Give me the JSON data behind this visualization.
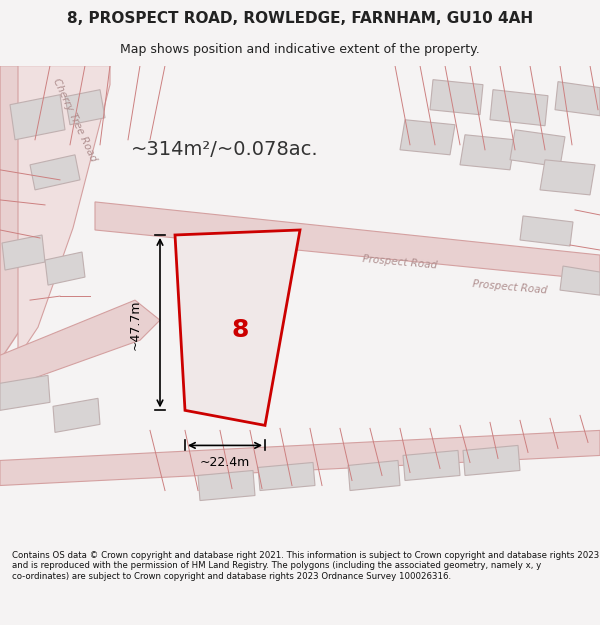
{
  "title_line1": "8, PROSPECT ROAD, ROWLEDGE, FARNHAM, GU10 4AH",
  "title_line2": "Map shows position and indicative extent of the property.",
  "area_label": "~314m²/~0.078ac.",
  "width_label": "~22.4m",
  "height_label": "~47.7m",
  "property_number": "8",
  "footer_text": "Contains OS data © Crown copyright and database right 2021. This information is subject to Crown copyright and database rights 2023 and is reproduced with the permission of HM Land Registry. The polygons (including the associated geometry, namely x, y co-ordinates) are subject to Crown copyright and database rights 2023 Ordnance Survey 100026316.",
  "bg_color": "#f0eeee",
  "map_bg": "#f5f3f3",
  "road_color_light": "#e8d8d8",
  "road_outline": "#d4b8b8",
  "building_fill": "#ddd8d8",
  "building_outline": "#c8b8b8",
  "property_fill": "#e8e0e0",
  "property_outline": "#cc0000",
  "dim_color": "#000000",
  "label_area_color": "#333333",
  "road_label_color": "#c0a0a0"
}
